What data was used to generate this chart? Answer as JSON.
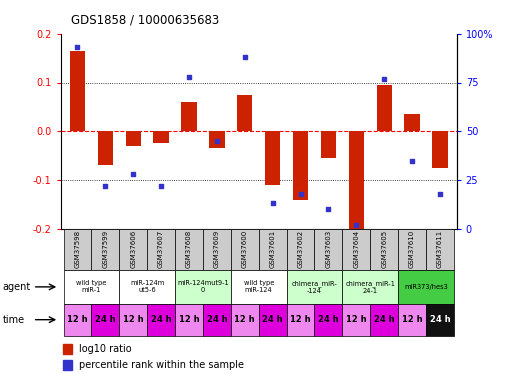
{
  "title": "GDS1858 / 10000635683",
  "samples": [
    "GSM37598",
    "GSM37599",
    "GSM37606",
    "GSM37607",
    "GSM37608",
    "GSM37609",
    "GSM37600",
    "GSM37601",
    "GSM37602",
    "GSM37603",
    "GSM37604",
    "GSM37605",
    "GSM37610",
    "GSM37611"
  ],
  "log10_ratio": [
    0.165,
    -0.07,
    -0.03,
    -0.025,
    0.06,
    -0.035,
    0.075,
    -0.11,
    -0.14,
    -0.055,
    -0.2,
    0.095,
    0.035,
    -0.075
  ],
  "percentile_rank": [
    93,
    22,
    28,
    22,
    78,
    45,
    88,
    13,
    18,
    10,
    2,
    77,
    35,
    18
  ],
  "ylim_left": [
    -0.2,
    0.2
  ],
  "ylim_right": [
    0,
    100
  ],
  "bar_color": "#cc2200",
  "dot_color": "#3333cc",
  "agent_groups": [
    {
      "label": "wild type\nmiR-1",
      "cols": [
        0,
        1
      ],
      "color": "#ffffff"
    },
    {
      "label": "miR-124m\nut5-6",
      "cols": [
        2,
        3
      ],
      "color": "#ffffff"
    },
    {
      "label": "miR-124mut9-1\n0",
      "cols": [
        4,
        5
      ],
      "color": "#ccffcc"
    },
    {
      "label": "wild type\nmiR-124",
      "cols": [
        6,
        7
      ],
      "color": "#ffffff"
    },
    {
      "label": "chimera_miR-\n-124",
      "cols": [
        8,
        9
      ],
      "color": "#ccffcc"
    },
    {
      "label": "chimera_miR-1\n24-1",
      "cols": [
        10,
        11
      ],
      "color": "#ccffcc"
    },
    {
      "label": "miR373/hes3",
      "cols": [
        12,
        13
      ],
      "color": "#44cc44"
    }
  ],
  "time_labels": [
    "12 h",
    "24 h",
    "12 h",
    "24 h",
    "12 h",
    "24 h",
    "12 h",
    "24 h",
    "12 h",
    "24 h",
    "12 h",
    "24 h",
    "12 h",
    "24 h"
  ],
  "time_bg_12": "#ee88ee",
  "time_bg_24": "#dd00dd",
  "time_bg_last24": "#111111",
  "time_fg_light": "#000000",
  "time_fg_dark": "#ffffff",
  "sample_bg": "#cccccc",
  "left_yticks": [
    -0.2,
    -0.1,
    0.0,
    0.1,
    0.2
  ],
  "right_yticks": [
    0,
    25,
    50,
    75,
    100
  ],
  "right_yticklabels": [
    "0",
    "25",
    "50",
    "75",
    "100%"
  ]
}
